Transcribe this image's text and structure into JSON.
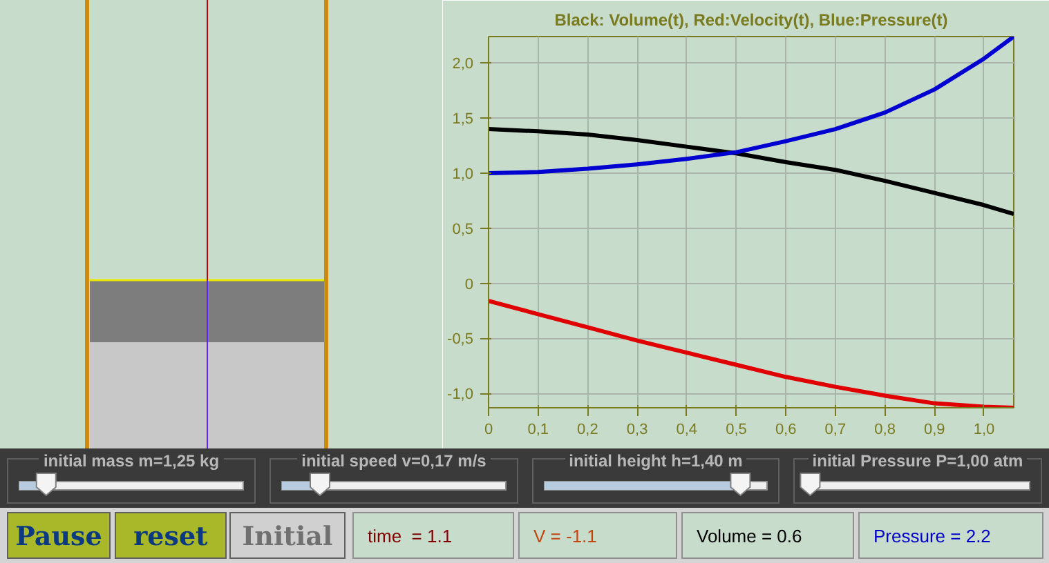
{
  "chart_data": {
    "type": "line",
    "title": "Black: Volume(t), Red:Velocity(t), Blue:Pressure(t)",
    "x": [
      0,
      0.1,
      0.2,
      0.3,
      0.4,
      0.5,
      0.6,
      0.7,
      0.8,
      0.9,
      1.0,
      1.06
    ],
    "series": [
      {
        "color": "#000000",
        "values": [
          1.4,
          1.38,
          1.35,
          1.3,
          1.24,
          1.18,
          1.1,
          1.03,
          0.93,
          0.82,
          0.71,
          0.63
        ]
      },
      {
        "color": "#e00000",
        "values": [
          -0.16,
          -0.28,
          -0.4,
          -0.52,
          -0.63,
          -0.74,
          -0.85,
          -0.94,
          -1.02,
          -1.09,
          -1.12,
          -1.13
        ]
      },
      {
        "color": "#0000d0",
        "values": [
          1.0,
          1.01,
          1.04,
          1.08,
          1.13,
          1.19,
          1.29,
          1.4,
          1.55,
          1.76,
          2.04,
          2.24
        ]
      }
    ],
    "xlim": [
      0,
      1.06
    ],
    "ylim": [
      -1.13,
      2.24
    ],
    "xticks": [
      0,
      {
        "value": 0.1,
        "label": "0,1"
      },
      {
        "value": 0.2,
        "label": "0,2"
      },
      {
        "value": 0.3,
        "label": "0,3"
      },
      {
        "value": 0.4,
        "label": "0,4"
      },
      {
        "value": 0.5,
        "label": "0,5"
      },
      {
        "value": 0.6,
        "label": "0,6"
      },
      {
        "value": 0.7,
        "label": "0,7"
      },
      {
        "value": 0.8,
        "label": "0,8"
      },
      {
        "value": 0.9,
        "label": "0,9"
      },
      {
        "value": 1.0,
        "label": "1,0"
      }
    ],
    "yticks": [
      {
        "value": -1.0,
        "label": "-1,0"
      },
      {
        "value": -0.5,
        "label": "-0,5"
      },
      0,
      {
        "value": 0.5,
        "label": "0,5"
      },
      {
        "value": 1.0,
        "label": "1,0"
      },
      {
        "value": 1.5,
        "label": "1,5"
      },
      {
        "value": 2.0,
        "label": "2,0"
      }
    ],
    "grid": true,
    "marker": "none",
    "line_style": "solid",
    "annotations": [
      "initial mass m=1,25 kg",
      "initial speed v=0,17 m/s",
      "initial height h=1,40 m",
      "initial Pressure P=1,00 atm",
      "Pause",
      "reset",
      "Initial",
      "time  = 1.1",
      "V = -1.1",
      "Volume = 0.6",
      "Pressure = 2.2"
    ]
  }
}
